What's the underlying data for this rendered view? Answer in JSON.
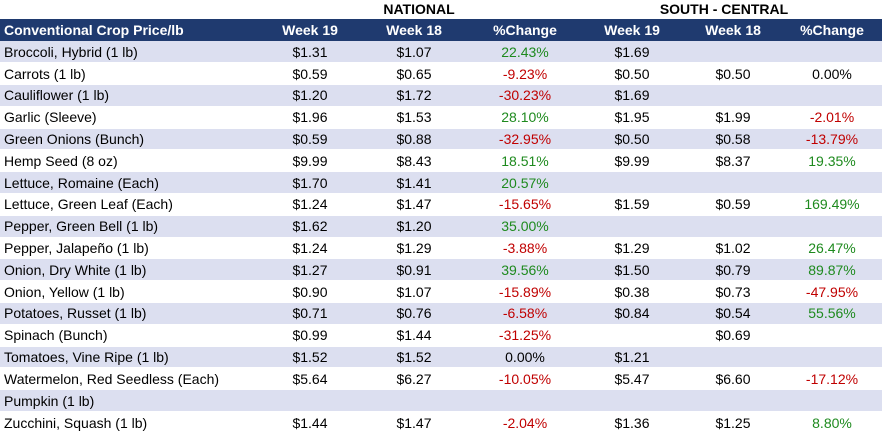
{
  "groups": {
    "national": "NATIONAL",
    "south_central": "SOUTH - CENTRAL"
  },
  "columns": [
    "Conventional Crop Price/lb",
    "Week 19",
    "Week 18",
    "%Change",
    "Week 19",
    "Week 18",
    "%Change"
  ],
  "colors": {
    "header_bg": "#1f3a6f",
    "stripe": "#dcdff0",
    "positive": "#1e8a1e",
    "negative": "#c00000"
  },
  "rows": [
    [
      "Broccoli, Hybrid (1 lb)",
      "$1.31",
      "$1.07",
      "22.43%",
      "$1.69",
      "",
      ""
    ],
    [
      "Carrots (1 lb)",
      "$0.59",
      "$0.65",
      "-9.23%",
      "$0.50",
      "$0.50",
      "0.00%"
    ],
    [
      "Cauliflower (1 lb)",
      "$1.20",
      "$1.72",
      "-30.23%",
      "$1.69",
      "",
      ""
    ],
    [
      "Garlic (Sleeve)",
      "$1.96",
      "$1.53",
      "28.10%",
      "$1.95",
      "$1.99",
      "-2.01%"
    ],
    [
      "Green Onions (Bunch)",
      "$0.59",
      "$0.88",
      "-32.95%",
      "$0.50",
      "$0.58",
      "-13.79%"
    ],
    [
      "Hemp Seed (8 oz)",
      "$9.99",
      "$8.43",
      "18.51%",
      "$9.99",
      "$8.37",
      "19.35%"
    ],
    [
      "Lettuce, Romaine (Each)",
      "$1.70",
      "$1.41",
      "20.57%",
      "",
      "",
      ""
    ],
    [
      "Lettuce, Green Leaf (Each)",
      "$1.24",
      "$1.47",
      "-15.65%",
      "$1.59",
      "$0.59",
      "169.49%"
    ],
    [
      "Pepper, Green Bell (1 lb)",
      "$1.62",
      "$1.20",
      "35.00%",
      "",
      "",
      ""
    ],
    [
      "Pepper, Jalapeño (1 lb)",
      "$1.24",
      "$1.29",
      "-3.88%",
      "$1.29",
      "$1.02",
      "26.47%"
    ],
    [
      "Onion, Dry White (1 lb)",
      "$1.27",
      "$0.91",
      "39.56%",
      "$1.50",
      "$0.79",
      "89.87%"
    ],
    [
      "Onion, Yellow (1 lb)",
      "$0.90",
      "$1.07",
      "-15.89%",
      "$0.38",
      "$0.73",
      "-47.95%"
    ],
    [
      "Potatoes, Russet (1 lb)",
      "$0.71",
      "$0.76",
      "-6.58%",
      "$0.84",
      "$0.54",
      "55.56%"
    ],
    [
      "Spinach (Bunch)",
      "$0.99",
      "$1.44",
      "-31.25%",
      "",
      "$0.69",
      ""
    ],
    [
      "Tomatoes, Vine Ripe (1 lb)",
      "$1.52",
      "$1.52",
      "0.00%",
      "$1.21",
      "",
      ""
    ],
    [
      "Watermelon, Red Seedless (Each)",
      "$5.64",
      "$6.27",
      "-10.05%",
      "$5.47",
      "$6.60",
      "-17.12%"
    ],
    [
      "Pumpkin (1 lb)",
      "",
      "",
      "",
      "",
      "",
      ""
    ],
    [
      "Zucchini, Squash (1 lb)",
      "$1.44",
      "$1.47",
      "-2.04%",
      "$1.36",
      "$1.25",
      "8.80%"
    ]
  ]
}
